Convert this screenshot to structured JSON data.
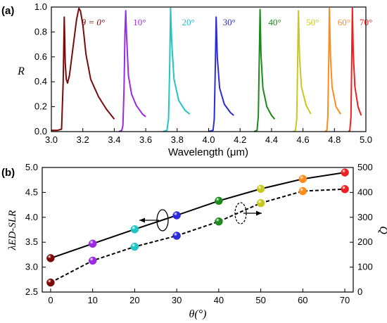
{
  "colors": {
    "c0": "#7a0a0a",
    "c10": "#9a2be2",
    "c20": "#22c4c4",
    "c30": "#2b2bdc",
    "c40": "#1a8a1a",
    "c50": "#c8c820",
    "c60": "#ff8c1a",
    "c70": "#ee2020"
  },
  "chart_data": [
    {
      "panel": "(a)",
      "type": "line",
      "xlabel": "Wavelength (μm)",
      "ylabel": "R",
      "xlim": [
        3.0,
        5.0
      ],
      "ylim": [
        0.0,
        1.0
      ],
      "xticks": [
        "3.0",
        "3.2",
        "3.4",
        "3.6",
        "3.8",
        "4.0",
        "4.2",
        "4.4",
        "4.6",
        "4.8",
        "5.0"
      ],
      "yticks": [
        "0.0",
        "0.2",
        "0.4",
        "0.6",
        "0.8",
        "1.0"
      ],
      "series": [
        {
          "name": "θ = 0°",
          "label_x": 3.2,
          "color": "#7a0a0a",
          "points": [
            [
              3.0,
              0.01
            ],
            [
              3.04,
              0.01
            ],
            [
              3.065,
              0.02
            ],
            [
              3.075,
              0.4
            ],
            [
              3.082,
              0.92
            ],
            [
              3.088,
              0.55
            ],
            [
              3.095,
              0.42
            ],
            [
              3.103,
              0.39
            ],
            [
              3.115,
              0.45
            ],
            [
              3.14,
              0.7
            ],
            [
              3.16,
              0.9
            ],
            [
              3.175,
              0.99
            ],
            [
              3.185,
              0.97
            ],
            [
              3.2,
              0.86
            ],
            [
              3.22,
              0.62
            ],
            [
              3.25,
              0.42
            ],
            [
              3.3,
              0.28
            ],
            [
              3.35,
              0.18
            ],
            [
              3.4,
              0.1
            ]
          ]
        },
        {
          "name": "10°",
          "label_x": 3.52,
          "color": "#9a2be2",
          "points": [
            [
              3.43,
              0.0
            ],
            [
              3.448,
              0.01
            ],
            [
              3.455,
              0.05
            ],
            [
              3.462,
              0.35
            ],
            [
              3.468,
              0.8
            ],
            [
              3.473,
              0.97
            ],
            [
              3.478,
              0.78
            ],
            [
              3.49,
              0.45
            ],
            [
              3.51,
              0.3
            ],
            [
              3.54,
              0.21
            ],
            [
              3.58,
              0.14
            ],
            [
              3.6,
              0.12
            ]
          ]
        },
        {
          "name": "20°",
          "label_x": 3.83,
          "color": "#22c4c4",
          "points": [
            [
              3.71,
              0.0
            ],
            [
              3.735,
              0.01
            ],
            [
              3.745,
              0.1
            ],
            [
              3.752,
              0.5
            ],
            [
              3.758,
              0.99
            ],
            [
              3.765,
              0.72
            ],
            [
              3.78,
              0.42
            ],
            [
              3.81,
              0.25
            ],
            [
              3.85,
              0.17
            ],
            [
              3.88,
              0.14
            ]
          ]
        },
        {
          "name": "30°",
          "label_x": 4.09,
          "color": "#2b2bdc",
          "points": [
            [
              4.0,
              0.0
            ],
            [
              4.028,
              0.01
            ],
            [
              4.036,
              0.1
            ],
            [
              4.043,
              0.55
            ],
            [
              4.048,
              0.92
            ],
            [
              4.055,
              0.6
            ],
            [
              4.07,
              0.35
            ],
            [
              4.1,
              0.22
            ],
            [
              4.14,
              0.15
            ],
            [
              4.16,
              0.13
            ]
          ]
        },
        {
          "name": "40°",
          "label_x": 4.38,
          "color": "#1a8a1a",
          "points": [
            [
              4.29,
              0.0
            ],
            [
              4.308,
              0.01
            ],
            [
              4.316,
              0.12
            ],
            [
              4.322,
              0.6
            ],
            [
              4.327,
              0.98
            ],
            [
              4.333,
              0.62
            ],
            [
              4.345,
              0.35
            ],
            [
              4.37,
              0.2
            ],
            [
              4.4,
              0.13
            ],
            [
              4.42,
              0.1
            ]
          ]
        },
        {
          "name": "50°",
          "label_x": 4.62,
          "color": "#c8c820",
          "points": [
            [
              4.54,
              0.0
            ],
            [
              4.552,
              0.01
            ],
            [
              4.56,
              0.1
            ],
            [
              4.566,
              0.55
            ],
            [
              4.571,
              0.97
            ],
            [
              4.578,
              0.6
            ],
            [
              4.59,
              0.36
            ],
            [
              4.62,
              0.21
            ],
            [
              4.65,
              0.14
            ]
          ]
        },
        {
          "name": "60°",
          "label_x": 4.82,
          "color": "#ff8c1a",
          "points": [
            [
              4.74,
              0.0
            ],
            [
              4.752,
              0.01
            ],
            [
              4.758,
              0.12
            ],
            [
              4.764,
              0.6
            ],
            [
              4.768,
              0.99
            ],
            [
              4.775,
              0.6
            ],
            [
              4.785,
              0.36
            ],
            [
              4.81,
              0.2
            ],
            [
              4.84,
              0.14
            ]
          ]
        },
        {
          "name": "70°",
          "label_x": 4.96,
          "color": "#ee2020",
          "points": [
            [
              4.89,
              0.0
            ],
            [
              4.898,
              0.01
            ],
            [
              4.905,
              0.12
            ],
            [
              4.91,
              0.6
            ],
            [
              4.914,
              0.99
            ],
            [
              4.92,
              0.62
            ],
            [
              4.93,
              0.36
            ],
            [
              4.95,
              0.2
            ],
            [
              4.97,
              0.13
            ]
          ]
        }
      ]
    },
    {
      "panel": "(b)",
      "type": "line",
      "xlabel": "θ(°)",
      "ylabel": "λED-SLR",
      "y2label": "Q",
      "xlim": [
        -2,
        72
      ],
      "ylim": [
        2.5,
        5.0
      ],
      "y2lim": [
        0,
        500
      ],
      "xticks": [
        "0",
        "10",
        "20",
        "30",
        "40",
        "50",
        "60",
        "70"
      ],
      "yticks": [
        "2.5",
        "3.0",
        "3.5",
        "4.0",
        "4.5",
        "5.0"
      ],
      "y2ticks": [
        "0",
        "100",
        "200",
        "300",
        "400",
        "500"
      ],
      "x": [
        0,
        10,
        20,
        30,
        40,
        50,
        60,
        70
      ],
      "point_colors": [
        "#7a0a0a",
        "#9a2be2",
        "#22c4c4",
        "#2b2bdc",
        "#1a8a1a",
        "#c8c820",
        "#ff8c1a",
        "#ee2020"
      ],
      "series": [
        {
          "axis": "left",
          "style": "solid",
          "values": [
            3.18,
            3.47,
            3.76,
            4.04,
            4.33,
            4.57,
            4.77,
            4.9
          ]
        },
        {
          "axis": "right",
          "style": "dashed",
          "values": [
            38,
            126,
            182,
            226,
            283,
            357,
            405,
            413
          ]
        }
      ]
    }
  ]
}
